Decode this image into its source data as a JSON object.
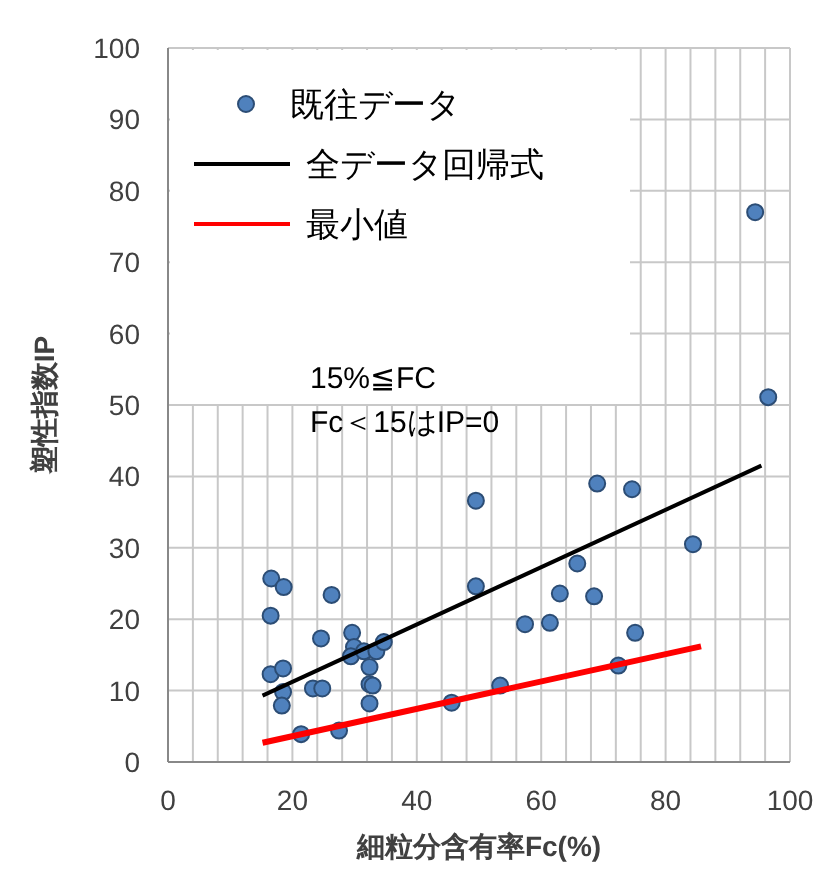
{
  "chart_data": {
    "type": "scatter",
    "xlabel": "細粒分含有率Fc(%)",
    "ylabel": "塑性指数IP",
    "xlim": [
      0,
      100
    ],
    "ylim": [
      0,
      100
    ],
    "xticks": [
      0,
      20,
      40,
      60,
      80,
      100
    ],
    "yticks": [
      0,
      10,
      20,
      30,
      40,
      50,
      60,
      70,
      80,
      90,
      100
    ],
    "grid": true,
    "legend": "top left",
    "annotations": [
      "15%≦FC",
      "Fc＜15はIP=0"
    ],
    "series": [
      {
        "name": "既往データ",
        "marker": "circle",
        "color": "#4f81bd",
        "x": [
          16.6,
          18.6,
          16.5,
          26.3,
          16.5,
          18.5,
          18.5,
          18.3,
          24.6,
          23.3,
          24.8,
          21.4,
          27.5,
          29.6,
          29.9,
          29.4,
          31.5,
          33.5,
          34.7,
          32.4,
          32.4,
          32.9,
          32.4,
          49.5,
          49.5,
          45.6,
          53.4,
          57.4,
          61.4,
          63.0,
          65.8,
          68.5,
          69.0,
          72.4,
          74.6,
          75.1,
          84.4,
          96.5,
          94.4
        ],
        "values": [
          25.7,
          24.5,
          20.5,
          23.4,
          12.3,
          13.1,
          9.8,
          7.9,
          17.3,
          10.3,
          10.3,
          3.9,
          4.4,
          18.1,
          16.1,
          14.8,
          15.5,
          15.5,
          16.8,
          13.3,
          10.9,
          10.7,
          8.2,
          36.6,
          24.6,
          8.3,
          10.7,
          19.3,
          19.5,
          23.6,
          27.8,
          23.2,
          39.0,
          13.5,
          38.2,
          18.1,
          30.5,
          51.1,
          77.0
        ]
      },
      {
        "name": "全データ回帰式",
        "type": "line",
        "marker": "none",
        "color": "#000000",
        "x": [
          15.2,
          95.4
        ],
        "values": [
          9.3,
          41.5
        ]
      },
      {
        "name": "最小値",
        "type": "line",
        "marker": "none",
        "color": "#ff0000",
        "x": [
          15.2,
          85.7
        ],
        "values": [
          2.7,
          16.2
        ]
      }
    ]
  }
}
